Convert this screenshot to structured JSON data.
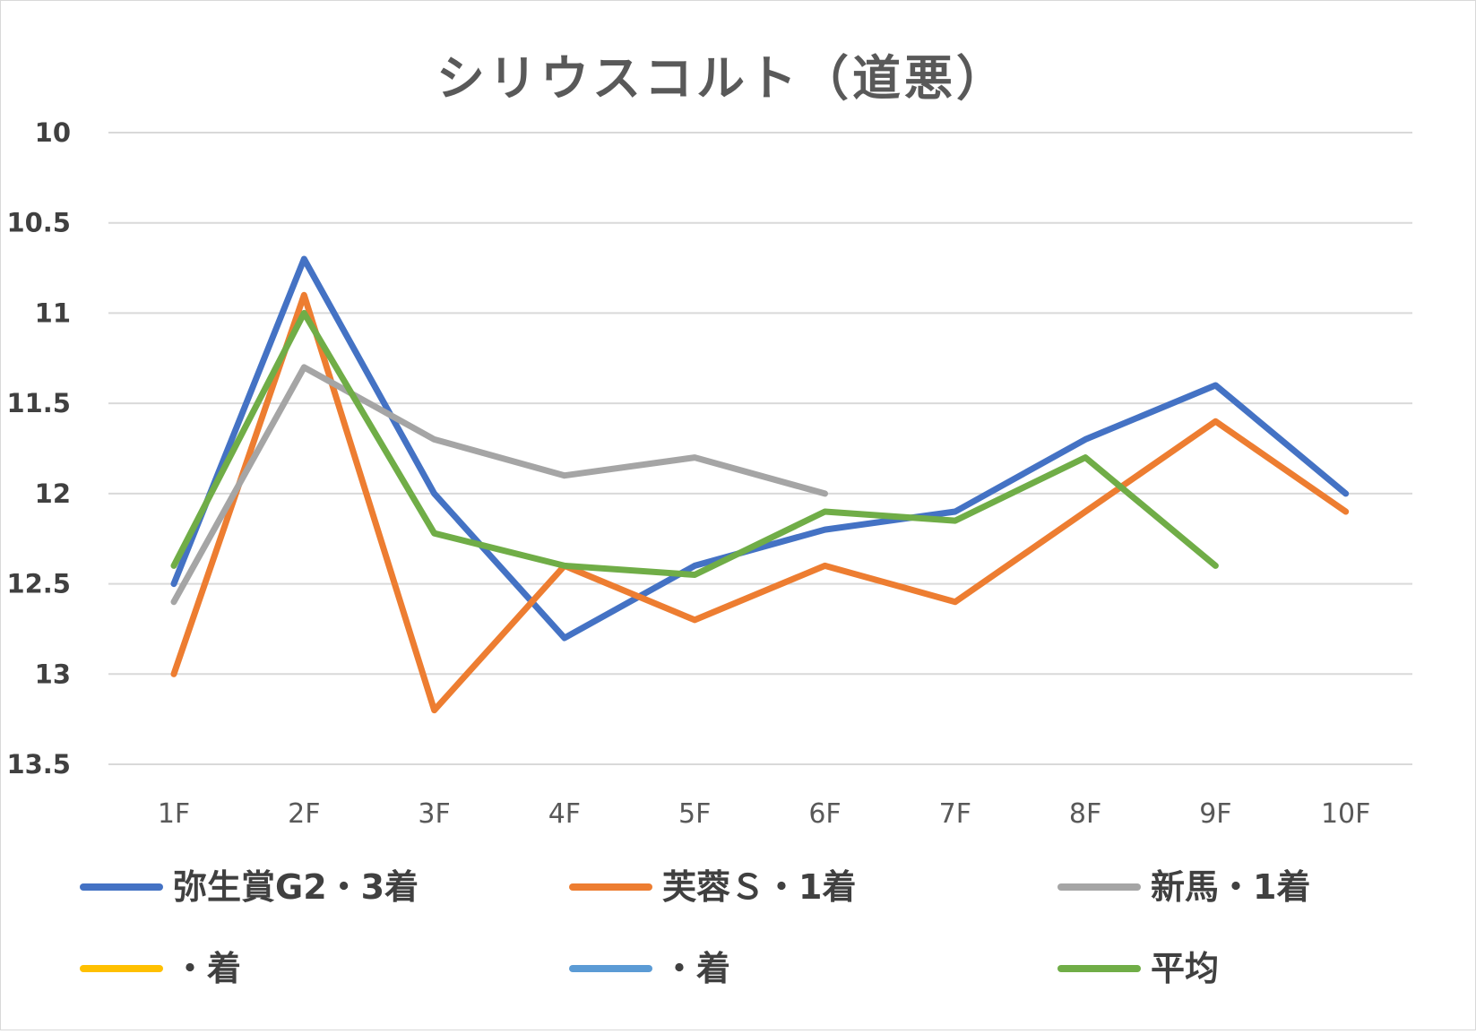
{
  "chart_data": {
    "type": "line",
    "title": "シリウスコルト（道悪）",
    "xlabel": "",
    "ylabel": "",
    "categories": [
      "1F",
      "2F",
      "3F",
      "4F",
      "5F",
      "6F",
      "7F",
      "8F",
      "9F",
      "10F"
    ],
    "y_ticks": [
      "10",
      "10.5",
      "11",
      "11.5",
      "12",
      "12.5",
      "13",
      "13.5"
    ],
    "ylim": [
      10,
      13.5
    ],
    "y_reversed": true,
    "grid": true,
    "legend_position": "bottom",
    "series": [
      {
        "name": "弥生賞G2・3着",
        "color": "#4472C4",
        "values": [
          12.5,
          10.7,
          12.0,
          12.8,
          12.4,
          12.2,
          12.1,
          11.7,
          11.4,
          12.0
        ]
      },
      {
        "name": "芙蓉Ｓ・1着",
        "color": "#ED7D31",
        "values": [
          13.0,
          10.9,
          13.2,
          12.4,
          12.7,
          12.4,
          12.6,
          12.1,
          11.6,
          12.1
        ]
      },
      {
        "name": "新馬・1着",
        "color": "#A5A5A5",
        "values": [
          12.6,
          11.3,
          11.7,
          11.9,
          11.8,
          12.0,
          null,
          null,
          null,
          null
        ]
      },
      {
        "name": "・着",
        "color": "#FFC000",
        "values": [
          null,
          null,
          null,
          null,
          null,
          null,
          null,
          null,
          null,
          null
        ]
      },
      {
        "name": "・着",
        "color": "#5B9BD5",
        "values": [
          null,
          null,
          null,
          null,
          null,
          null,
          null,
          null,
          null,
          null
        ]
      },
      {
        "name": "平均",
        "color": "#70AD47",
        "values": [
          12.4,
          11.0,
          12.22,
          12.4,
          12.45,
          12.1,
          12.15,
          11.8,
          12.4,
          null
        ]
      }
    ]
  }
}
